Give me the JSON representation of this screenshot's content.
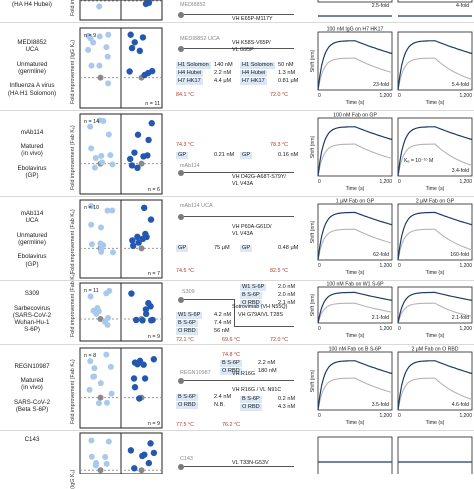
{
  "rows": [
    {
      "id": "r0",
      "labels": [
        "s virus",
        "(HA H4 Hubei)"
      ],
      "ylab": "Fold improvement (IgG Kₑ)",
      "n1": "",
      "n2": ""
    },
    {
      "id": "r1",
      "labels": [
        "MEDI8852",
        "UCA",
        "",
        "Unmatured",
        "(germline)",
        "",
        "Influenza A virus",
        "(HA H1 Solomon)"
      ],
      "ylab": "Fold improvement (IgG Kₑ)",
      "n1": "n = 9",
      "n2": "n = 11"
    },
    {
      "id": "r2",
      "labels": [
        "mAb114",
        "",
        "Matured",
        "(in vivo)",
        "",
        "Ebolavirus",
        "(GP)"
      ],
      "ylab": "Fold improvement (Fab Kₑ)",
      "n1": "n = 14",
      "n2": "n = 6"
    },
    {
      "id": "r3",
      "labels": [
        "mAb114",
        "UCA",
        "",
        "Unmatured",
        "(germline)",
        "",
        "Ebolavirus",
        "(GP)"
      ],
      "ylab": "Fold improvement (Fab Kₑ)",
      "n1": "n = 10",
      "n2": "n = 7"
    },
    {
      "id": "r4",
      "labels": [
        "S309",
        "",
        "Sarbecovirus",
        "(SARS-CoV-2",
        "Wuhan-Hu-1",
        "S-6P)"
      ],
      "ylab": "Fold improvement (Fab Kₑ)",
      "n1": "n = 11",
      "n2": "n = 9"
    },
    {
      "id": "r5",
      "labels": [
        "REGN10987",
        "",
        "Matured",
        "(in vivo)",
        "",
        "SARS-CoV-2",
        "(Beta S-6P)"
      ],
      "ylab": "Fold improvement (Fab Kₑ)",
      "n1": "n = 8",
      "n2": "n = 9"
    },
    {
      "id": "r6",
      "labels": [
        "C143"
      ],
      "ylab": "(IgG Kₑ)",
      "n1": "",
      "n2": ""
    }
  ],
  "mid": {
    "r0": {
      "name": "MEDI8852",
      "mut": "VH E65P-M117Y"
    },
    "r1": {
      "name": "MEDI8852 UCA",
      "mut": [
        "VH K58S-V65P/",
        "VL G95P"
      ],
      "lhs": [
        [
          "H1 Solomon",
          "140 nM"
        ],
        [
          "H4 Hubei",
          "2.2 nM"
        ],
        [
          "H7 HK17",
          "4.4 μM"
        ]
      ],
      "rhs": [
        [
          "H1 Solomon",
          "50 nM"
        ],
        [
          "H4 Hubei",
          "1.3 nM"
        ],
        [
          "H7 HK17",
          "0.81 μM"
        ]
      ],
      "tl": "84.1 °C",
      "tr": "72.0 °C"
    },
    "r2": {
      "name": "mAb114",
      "mut": [
        "VH D42G-A68T-S79Y/",
        "VL V43A"
      ],
      "tl": "74.3 °C",
      "tr": "78.3 °C",
      "lhs": [
        [
          "GP",
          "0.21 nM"
        ]
      ],
      "rhs": [
        [
          "GP",
          "0.16 nM"
        ]
      ]
    },
    "r3": {
      "name": "mAb114 UCA",
      "mut": [
        "VH P60A-G61D/",
        "VL V43A"
      ],
      "lhs": [
        [
          "GP",
          "75 μM"
        ]
      ],
      "rhs": [
        [
          "GP",
          "0.48 μM"
        ]
      ],
      "tl": "74.5 °C",
      "tr": "82.5 °C"
    },
    "r4": {
      "name": "S309",
      "mut": [
        "Sotrovimab (VH N55Q)",
        "VH G79A/VL T28S"
      ],
      "lhs": [
        [
          "W1 S-6P",
          "4.2 nM"
        ],
        [
          "B S-6P",
          "7.4 nM"
        ],
        [
          "O RBD",
          "56 nM"
        ]
      ],
      "rhs": [
        [
          "W1 S-6P",
          "2.0 nM"
        ],
        [
          "B S-6P",
          "2.0 nM"
        ],
        [
          "O RBD",
          "2.1 nM"
        ]
      ],
      "tl": "72.1 °C",
      "tm": "69.6 °C",
      "tr": "72.0 °C"
    },
    "r5": {
      "name": "REGN10987",
      "mut": [
        "VH R16G",
        "VH R16G / VL N91C"
      ],
      "lhs": [
        [
          "B S-6P",
          "2.4 nM"
        ],
        [
          "O RBD",
          "N.B."
        ]
      ],
      "rhs": [
        [
          "B S-6P",
          "0.2 nM"
        ],
        [
          "O RBD",
          "4.3 nM"
        ]
      ],
      "rhs2": [
        [
          "B S-6P",
          "2.2 nM"
        ],
        [
          "O RBD",
          "180 nM"
        ]
      ],
      "tl": "77.5 °C",
      "tt": "74.8 °C",
      "tm": "76.2 °C"
    },
    "r6": {
      "name": "C143",
      "mut": "VL T33N-G53V"
    }
  },
  "spr": [
    {
      "titles": [
        "100 nM IgG on H4 Hubei",
        ""
      ],
      "folds": [
        "2.5-fold",
        "4-fold"
      ],
      "xt": [],
      "xl": ""
    },
    {
      "titles": [
        "100 nM IgG on H7 HK17",
        ""
      ],
      "folds": [
        "23-fold",
        "5.4-fold"
      ],
      "xt": [
        "0",
        "1,200",
        "0",
        "1,200"
      ],
      "xl": "Time (s)",
      "yl": "Shift (nm)"
    },
    {
      "titles": [
        "100 nM Fab on GP",
        ""
      ],
      "folds": [
        "",
        "3.4-fold"
      ],
      "kd": "Kₑ = 10⁻¹⁰ M",
      "xt": [
        "0",
        "1,200",
        "0",
        "1,200"
      ],
      "xl": "Time (s)",
      "yl": "Shift (nm)"
    },
    {
      "titles": [
        "1 μM Fab on GP",
        "2 μM Fab on GP"
      ],
      "folds": [
        "62-fold",
        "160-fold"
      ],
      "xt": [
        "0",
        "1,200",
        "0",
        "1,200"
      ],
      "xl": "Time (s)",
      "yl": "Shift (nm)"
    },
    {
      "titles": [
        "100 nM Fab on W1 S-6P",
        ""
      ],
      "folds": [
        "2.1-fold",
        "2.1-fold"
      ],
      "xt": [
        "0",
        "1,200",
        "0",
        "1,200"
      ],
      "xl": "Time (s)",
      "yl": "Shift (nm)"
    },
    {
      "titles": [
        "100 nM Fab on B S-6P",
        "2 μM Fab on O RBD"
      ],
      "folds": [
        "3.5-fold",
        "4.6-fold"
      ],
      "xt": [
        "0",
        "1,200",
        "0",
        "1,200"
      ],
      "xl": "Time (s)",
      "yl": "Shift (nm)"
    },
    {
      "titles": [
        "",
        ""
      ],
      "folds": [
        "",
        ""
      ],
      "xt": [],
      "xl": ""
    }
  ],
  "colors": {
    "light": "#a8c8ec",
    "dark": "#2458b0",
    "ctrl": "#8a8a8a",
    "wt_curve": "#b5b5b5",
    "mut_curve": "#1f3a68",
    "temp": "#b13a24",
    "chip": "#dbe7f5"
  }
}
